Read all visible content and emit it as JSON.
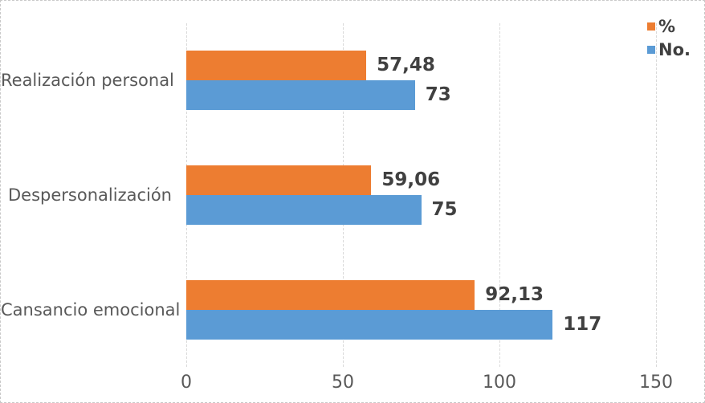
{
  "chart_data": {
    "type": "bar",
    "orientation": "horizontal",
    "title": "",
    "categories": [
      "Realización personal",
      "Despersonalización",
      "Cansancio emocional"
    ],
    "series": [
      {
        "name": "%",
        "color": "#ED7D31",
        "values": [
          57.48,
          59.06,
          92.13
        ],
        "data_labels": [
          "57,48",
          "59,06",
          "92,13"
        ]
      },
      {
        "name": "No.",
        "color": "#5B9BD5",
        "values": [
          73,
          75,
          117
        ],
        "data_labels": [
          "73",
          "75",
          "117"
        ]
      }
    ],
    "xlabel": "",
    "ylabel": "",
    "xlim": [
      0,
      150
    ],
    "x_ticks": [
      "0",
      "50",
      "100",
      "150"
    ],
    "grid": true,
    "gridline_color": "#d9d9d9",
    "legend_position": "top-right",
    "data_labels_shown": true,
    "colors": {
      "category_text": "#595959",
      "tick_text": "#595959",
      "data_label_text": "#404040",
      "legend_text": "#404040",
      "background": "#ffffff",
      "border": "#c9c9c9"
    }
  }
}
